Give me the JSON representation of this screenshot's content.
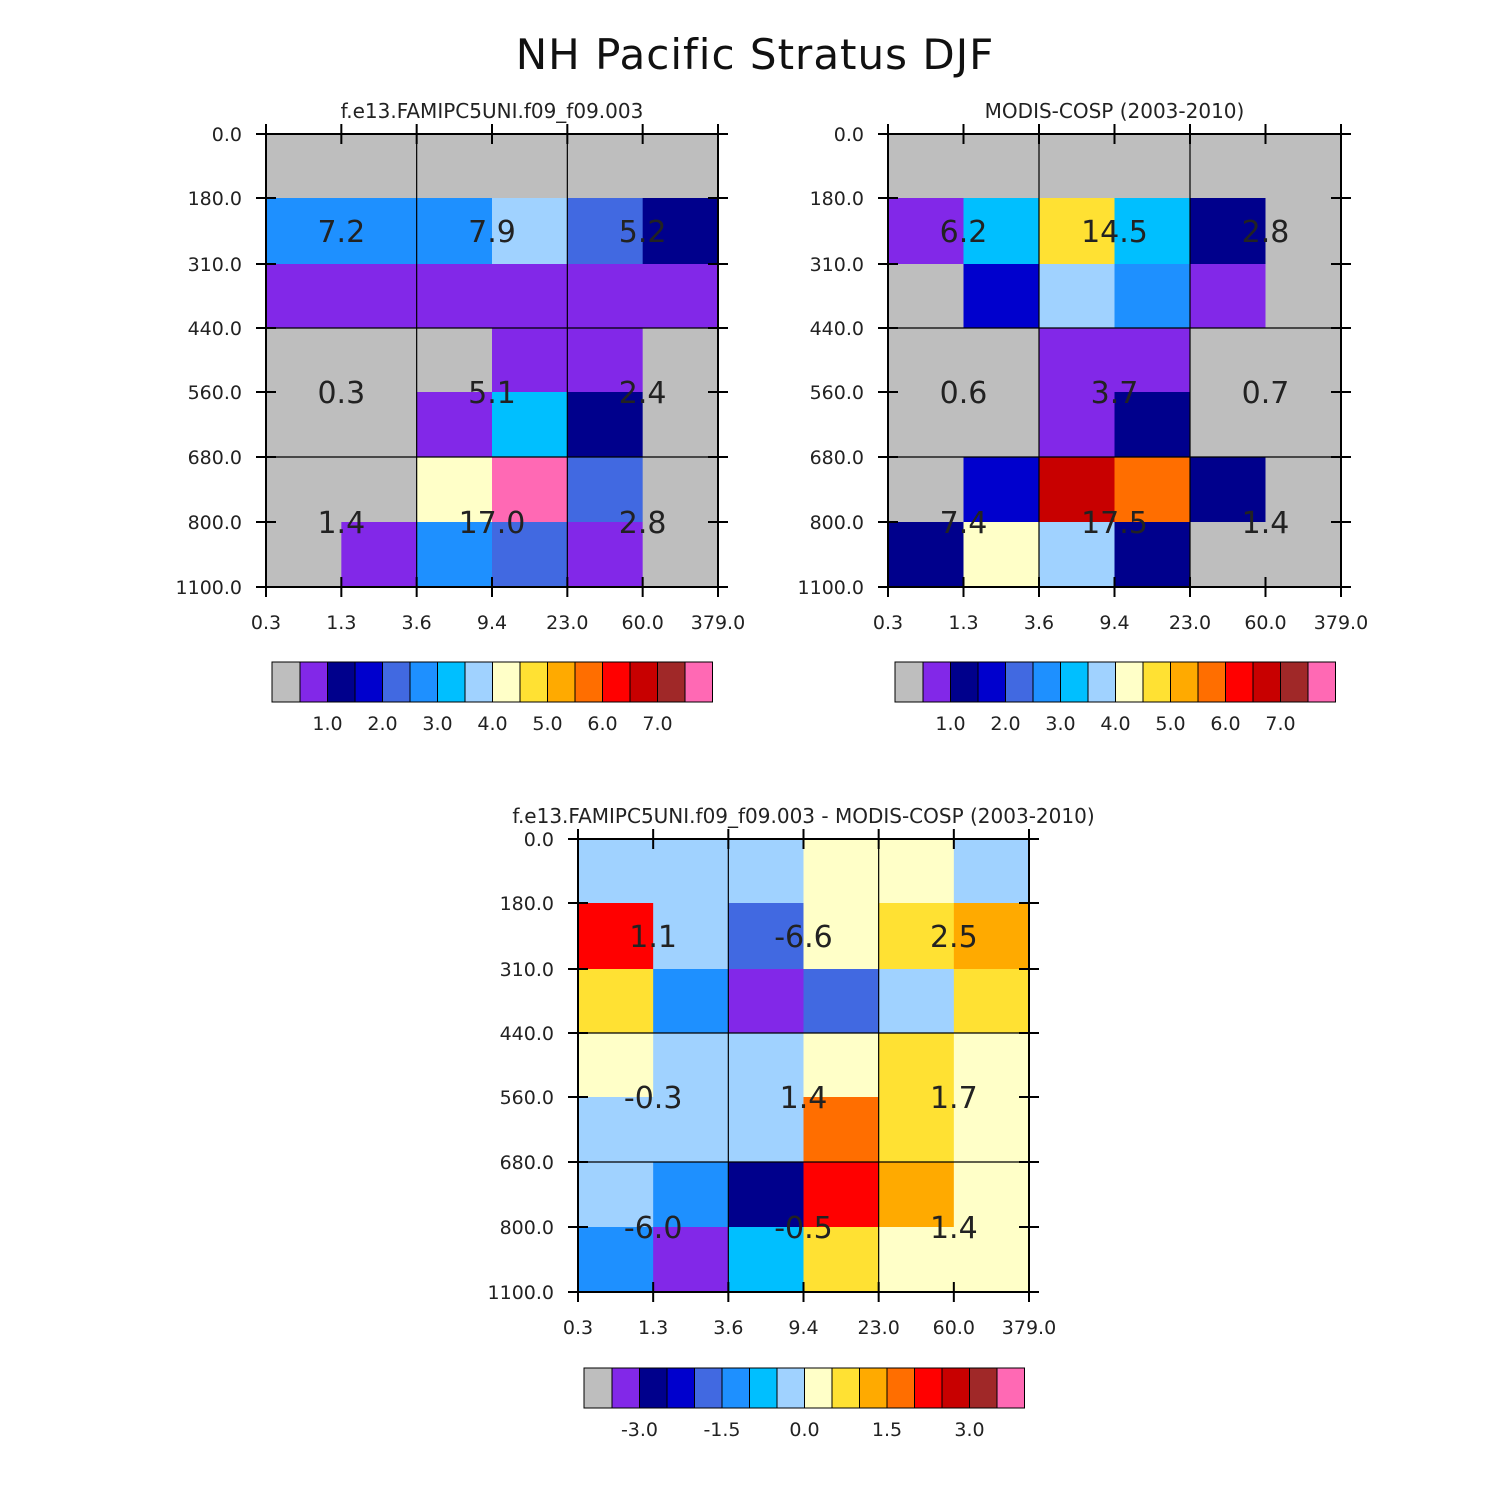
{
  "title": "NH Pacific Stratus DJF",
  "colors": {
    "palette": [
      "#bebebe",
      "#8228e8",
      "#00008c",
      "#0000cd",
      "#4169e1",
      "#1e90ff",
      "#00bfff",
      "#a0d2ff",
      "#ffffc8",
      "#ffe133",
      "#ffaa00",
      "#ff6e00",
      "#ff0000",
      "#c80000",
      "#a02828",
      "#ff69b4"
    ],
    "axis": "#000000",
    "label": "#222222"
  },
  "chart_data": [
    {
      "type": "heatmap",
      "title": "f.e13.FAMIPC5UNI.f09_f09.003",
      "x_ticks": [
        "0.3",
        "1.3",
        "3.6",
        "9.4",
        "23.0",
        "60.0",
        "379.0"
      ],
      "y_ticks": [
        "0.0",
        "180.0",
        "310.0",
        "440.0",
        "560.0",
        "680.0",
        "800.0",
        "1100.0"
      ],
      "cells": [
        [
          0,
          0,
          0,
          0,
          0,
          0
        ],
        [
          5,
          5,
          5,
          7,
          4,
          2
        ],
        [
          1,
          1,
          1,
          1,
          1,
          1
        ],
        [
          0,
          0,
          0,
          1,
          1,
          0
        ],
        [
          0,
          0,
          1,
          6,
          2,
          0
        ],
        [
          0,
          0,
          8,
          15,
          4,
          0
        ],
        [
          0,
          1,
          5,
          4,
          1,
          0
        ]
      ],
      "box_labels": [
        "7.2",
        "7.9",
        "5.2",
        "0.3",
        "5.1",
        "2.4",
        "1.4",
        "17.0",
        "2.8"
      ],
      "colorbar_labels": [
        "1.0",
        "2.0",
        "3.0",
        "4.0",
        "5.0",
        "6.0",
        "7.0"
      ]
    },
    {
      "type": "heatmap",
      "title": "MODIS-COSP (2003-2010)",
      "x_ticks": [
        "0.3",
        "1.3",
        "3.6",
        "9.4",
        "23.0",
        "60.0",
        "379.0"
      ],
      "y_ticks": [
        "0.0",
        "180.0",
        "310.0",
        "440.0",
        "560.0",
        "680.0",
        "800.0",
        "1100.0"
      ],
      "cells": [
        [
          0,
          0,
          0,
          0,
          0,
          0
        ],
        [
          1,
          6,
          9,
          6,
          2,
          0
        ],
        [
          0,
          3,
          7,
          5,
          1,
          0
        ],
        [
          0,
          0,
          1,
          1,
          0,
          0
        ],
        [
          0,
          0,
          1,
          2,
          0,
          0
        ],
        [
          0,
          3,
          13,
          11,
          2,
          0
        ],
        [
          2,
          8,
          7,
          2,
          0,
          0
        ]
      ],
      "box_labels": [
        "6.2",
        "14.5",
        "2.8",
        "0.6",
        "3.7",
        "0.7",
        "7.4",
        "17.5",
        "1.4"
      ],
      "colorbar_labels": [
        "1.0",
        "2.0",
        "3.0",
        "4.0",
        "5.0",
        "6.0",
        "7.0"
      ]
    },
    {
      "type": "heatmap",
      "title": "f.e13.FAMIPC5UNI.f09_f09.003 - MODIS-COSP (2003-2010)",
      "x_ticks": [
        "0.3",
        "1.3",
        "3.6",
        "9.4",
        "23.0",
        "60.0",
        "379.0"
      ],
      "y_ticks": [
        "0.0",
        "180.0",
        "310.0",
        "440.0",
        "560.0",
        "680.0",
        "800.0",
        "1100.0"
      ],
      "cells": [
        [
          7,
          7,
          7,
          8,
          8,
          7
        ],
        [
          12,
          7,
          4,
          8,
          9,
          10
        ],
        [
          9,
          5,
          1,
          4,
          7,
          9
        ],
        [
          8,
          7,
          7,
          8,
          9,
          8
        ],
        [
          7,
          7,
          7,
          11,
          9,
          8
        ],
        [
          7,
          5,
          2,
          12,
          10,
          8
        ],
        [
          5,
          1,
          6,
          9,
          8,
          8
        ]
      ],
      "box_labels": [
        "1.1",
        "-6.6",
        "2.5",
        "-0.3",
        "1.4",
        "1.7",
        "-6.0",
        "-0.5",
        "1.4"
      ],
      "colorbar_labels": [
        "-3.0",
        "-1.5",
        "0.0",
        "1.5",
        "3.0"
      ]
    }
  ]
}
